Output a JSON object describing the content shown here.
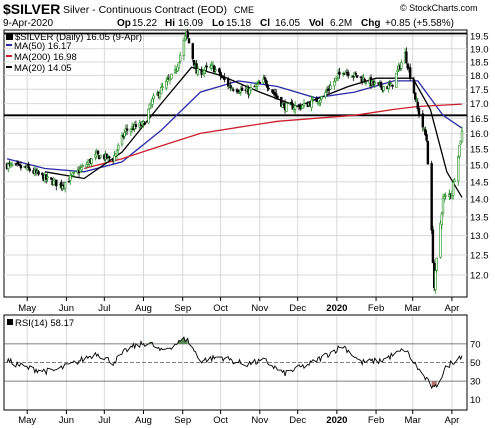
{
  "header": {
    "symbol": "$SILVER",
    "description": "Silver - Continuous Contract (EOD)",
    "exchange": "CME",
    "date": "9-Apr-2020",
    "open_label": "Op",
    "open": "15.22",
    "high_label": "Hi",
    "high": "16.09",
    "low_label": "Lo",
    "low": "15.18",
    "close_label": "Cl",
    "close": "16.05",
    "volume_label": "Vol",
    "volume": "6.2M",
    "change_label": "Chg",
    "change": "+0.85 (+5.58%)",
    "copyright": "© StockCharts.com"
  },
  "legend": {
    "price": "$SILVER (Daily) 16.05 (9-Apr)",
    "ma50": "MA(50) 16.17",
    "ma200": "MA(200) 16.98",
    "ma20": "MA(20) 14.05"
  },
  "rsi_label": "RSI(14) 58.17",
  "colors": {
    "up_candle": "#1e8c1e",
    "down_candle": "#000000",
    "ma50": "#2a2aa8",
    "ma200": "#cc1f2c",
    "ma20": "#000000",
    "rsi_line": "#000000",
    "rsi_fill": "#5a8a5a",
    "grid": "#d8d8d8"
  },
  "chart_data": [
    {
      "type": "candlestick",
      "title": "Silver - Continuous Contract (EOD)",
      "xlabel": "",
      "ylabel": "",
      "x_ticks": [
        "May",
        "Jun",
        "Jul",
        "Aug",
        "Sep",
        "Oct",
        "Nov",
        "Dec",
        "2020",
        "Feb",
        "Mar",
        "Apr"
      ],
      "y_ticks": [
        "12.0",
        "12.5",
        "13.0",
        "13.5",
        "14.0",
        "14.5",
        "15.0",
        "15.5",
        "16.0",
        "16.5",
        "17.0",
        "17.5",
        "18.0",
        "18.5",
        "19.0",
        "19.5"
      ],
      "ylim": [
        11.5,
        19.7
      ],
      "scale": "log",
      "grid": true,
      "legend": "top-left",
      "horizontal_lines": [
        19.6,
        16.6
      ],
      "close_path": [
        {
          "x": "2019-04-15",
          "y": 15.0
        },
        {
          "x": "2019-05-01",
          "y": 14.9
        },
        {
          "x": "2019-05-15",
          "y": 14.6
        },
        {
          "x": "2019-05-28",
          "y": 14.4
        },
        {
          "x": "2019-06-10",
          "y": 14.8
        },
        {
          "x": "2019-06-25",
          "y": 15.3
        },
        {
          "x": "2019-07-08",
          "y": 15.2
        },
        {
          "x": "2019-07-18",
          "y": 16.1
        },
        {
          "x": "2019-08-01",
          "y": 16.3
        },
        {
          "x": "2019-08-08",
          "y": 17.1
        },
        {
          "x": "2019-08-26",
          "y": 18.1
        },
        {
          "x": "2019-09-04",
          "y": 19.6
        },
        {
          "x": "2019-09-12",
          "y": 18.1
        },
        {
          "x": "2019-09-25",
          "y": 18.3
        },
        {
          "x": "2019-10-08",
          "y": 17.6
        },
        {
          "x": "2019-10-22",
          "y": 17.4
        },
        {
          "x": "2019-11-05",
          "y": 17.8
        },
        {
          "x": "2019-11-20",
          "y": 16.9
        },
        {
          "x": "2019-12-05",
          "y": 16.9
        },
        {
          "x": "2019-12-20",
          "y": 17.2
        },
        {
          "x": "2020-01-06",
          "y": 18.2
        },
        {
          "x": "2020-01-20",
          "y": 17.9
        },
        {
          "x": "2020-02-03",
          "y": 17.6
        },
        {
          "x": "2020-02-13",
          "y": 17.6
        },
        {
          "x": "2020-02-24",
          "y": 18.8
        },
        {
          "x": "2020-03-05",
          "y": 16.8
        },
        {
          "x": "2020-03-12",
          "y": 15.8
        },
        {
          "x": "2020-03-18",
          "y": 11.7
        },
        {
          "x": "2020-03-25",
          "y": 14.0
        },
        {
          "x": "2020-04-01",
          "y": 14.2
        },
        {
          "x": "2020-04-09",
          "y": 16.05
        }
      ],
      "series": [
        {
          "name": "MA(50) 16.17",
          "values": [
            {
              "x": "2019-04-15",
              "y": 15.2
            },
            {
              "x": "2019-05-15",
              "y": 14.9
            },
            {
              "x": "2019-06-15",
              "y": 14.8
            },
            {
              "x": "2019-07-15",
              "y": 15.1
            },
            {
              "x": "2019-08-15",
              "y": 16.1
            },
            {
              "x": "2019-09-15",
              "y": 17.4
            },
            {
              "x": "2019-10-15",
              "y": 17.8
            },
            {
              "x": "2019-11-15",
              "y": 17.6
            },
            {
              "x": "2019-12-15",
              "y": 17.2
            },
            {
              "x": "2020-01-15",
              "y": 17.4
            },
            {
              "x": "2020-02-15",
              "y": 17.8
            },
            {
              "x": "2020-03-05",
              "y": 17.8
            },
            {
              "x": "2020-03-25",
              "y": 16.6
            },
            {
              "x": "2020-04-09",
              "y": 16.17
            }
          ]
        },
        {
          "name": "MA(200) 16.98",
          "values": [
            {
              "x": "2019-06-15",
              "y": 14.9
            },
            {
              "x": "2019-07-15",
              "y": 15.2
            },
            {
              "x": "2019-08-15",
              "y": 15.6
            },
            {
              "x": "2019-09-15",
              "y": 16.0
            },
            {
              "x": "2019-10-15",
              "y": 16.2
            },
            {
              "x": "2019-11-15",
              "y": 16.4
            },
            {
              "x": "2019-12-15",
              "y": 16.5
            },
            {
              "x": "2020-01-15",
              "y": 16.6
            },
            {
              "x": "2020-02-15",
              "y": 16.8
            },
            {
              "x": "2020-03-05",
              "y": 16.9
            },
            {
              "x": "2020-04-09",
              "y": 16.98
            }
          ]
        },
        {
          "name": "MA(20) 14.05",
          "values": [
            {
              "x": "2019-05-15",
              "y": 14.8
            },
            {
              "x": "2019-06-15",
              "y": 14.6
            },
            {
              "x": "2019-07-15",
              "y": 15.4
            },
            {
              "x": "2019-08-15",
              "y": 17.0
            },
            {
              "x": "2019-09-08",
              "y": 18.3
            },
            {
              "x": "2019-10-01",
              "y": 18.0
            },
            {
              "x": "2019-11-01",
              "y": 17.4
            },
            {
              "x": "2019-12-01",
              "y": 16.9
            },
            {
              "x": "2020-01-10",
              "y": 17.6
            },
            {
              "x": "2020-02-01",
              "y": 17.9
            },
            {
              "x": "2020-03-01",
              "y": 17.9
            },
            {
              "x": "2020-03-15",
              "y": 16.8
            },
            {
              "x": "2020-03-28",
              "y": 14.8
            },
            {
              "x": "2020-04-09",
              "y": 14.05
            }
          ]
        }
      ]
    },
    {
      "type": "line",
      "title": "RSI(14) 58.17",
      "xlabel": "",
      "ylabel": "",
      "x_ticks": [
        "May",
        "Jun",
        "Jul",
        "Aug",
        "Sep",
        "Oct",
        "Nov",
        "Dec",
        "2020",
        "Feb",
        "Mar",
        "Apr"
      ],
      "y_ticks": [
        "10",
        "30",
        "50",
        "70"
      ],
      "ylim": [
        0,
        100
      ],
      "grid": true,
      "reference_lines": [
        30,
        50,
        70
      ],
      "series": [
        {
          "name": "RSI(14) 58.17",
          "values": [
            {
              "x": "2019-04-15",
              "y": 52
            },
            {
              "x": "2019-05-01",
              "y": 44
            },
            {
              "x": "2019-05-20",
              "y": 40
            },
            {
              "x": "2019-06-05",
              "y": 48
            },
            {
              "x": "2019-06-25",
              "y": 60
            },
            {
              "x": "2019-07-08",
              "y": 50
            },
            {
              "x": "2019-07-20",
              "y": 65
            },
            {
              "x": "2019-08-05",
              "y": 72
            },
            {
              "x": "2019-08-15",
              "y": 62
            },
            {
              "x": "2019-09-04",
              "y": 76
            },
            {
              "x": "2019-09-15",
              "y": 52
            },
            {
              "x": "2019-10-01",
              "y": 56
            },
            {
              "x": "2019-10-20",
              "y": 48
            },
            {
              "x": "2019-11-05",
              "y": 52
            },
            {
              "x": "2019-11-20",
              "y": 38
            },
            {
              "x": "2019-12-10",
              "y": 48
            },
            {
              "x": "2020-01-06",
              "y": 68
            },
            {
              "x": "2020-01-20",
              "y": 50
            },
            {
              "x": "2020-02-05",
              "y": 52
            },
            {
              "x": "2020-02-24",
              "y": 64
            },
            {
              "x": "2020-03-08",
              "y": 38
            },
            {
              "x": "2020-03-18",
              "y": 21
            },
            {
              "x": "2020-03-28",
              "y": 46
            },
            {
              "x": "2020-04-09",
              "y": 58.17
            }
          ]
        }
      ]
    }
  ]
}
